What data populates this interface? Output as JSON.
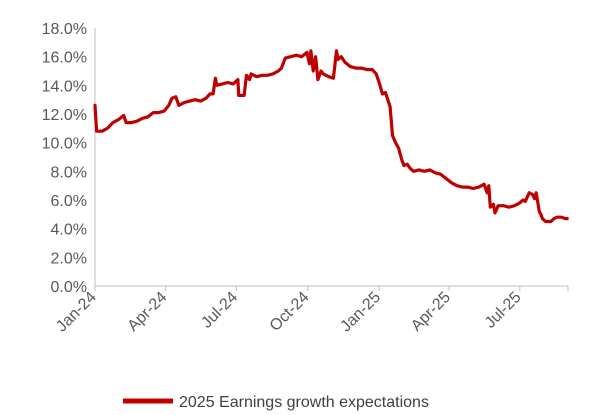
{
  "chart_data": {
    "type": "line",
    "title": "",
    "xlabel": "",
    "ylabel": "",
    "ylim": [
      0,
      18
    ],
    "y_tick_values": [
      0,
      2,
      4,
      6,
      8,
      10,
      12,
      14,
      16,
      18
    ],
    "y_tick_labels": [
      "0.0%",
      "2.0%",
      "4.0%",
      "6.0%",
      "8.0%",
      "10.0%",
      "12.0%",
      "14.0%",
      "16.0%",
      "18.0%"
    ],
    "x_tick_labels": [
      "Jan-24",
      "Apr-24",
      "Jul-24",
      "Oct-24",
      "Jan-25",
      "Apr-25",
      "Jul-25"
    ],
    "grid": false,
    "legend_position": "bottom",
    "series": [
      {
        "name": "2025 Earnings growth expectations",
        "color": "#c00000",
        "points": [
          [
            "2024-01-01",
            12.6
          ],
          [
            "2024-01-03",
            10.8
          ],
          [
            "2024-01-10",
            10.8
          ],
          [
            "2024-01-17",
            11.0
          ],
          [
            "2024-01-24",
            11.4
          ],
          [
            "2024-01-31",
            11.6
          ],
          [
            "2024-02-07",
            11.9
          ],
          [
            "2024-02-10",
            11.4
          ],
          [
            "2024-02-17",
            11.4
          ],
          [
            "2024-02-24",
            11.5
          ],
          [
            "2024-03-02",
            11.7
          ],
          [
            "2024-03-09",
            11.8
          ],
          [
            "2024-03-16",
            12.1
          ],
          [
            "2024-03-23",
            12.1
          ],
          [
            "2024-03-30",
            12.2
          ],
          [
            "2024-04-05",
            12.6
          ],
          [
            "2024-04-09",
            13.1
          ],
          [
            "2024-04-14",
            13.2
          ],
          [
            "2024-04-18",
            12.6
          ],
          [
            "2024-04-25",
            12.8
          ],
          [
            "2024-05-02",
            12.9
          ],
          [
            "2024-05-09",
            13.0
          ],
          [
            "2024-05-16",
            12.9
          ],
          [
            "2024-05-23",
            13.1
          ],
          [
            "2024-05-28",
            13.4
          ],
          [
            "2024-06-01",
            13.4
          ],
          [
            "2024-06-04",
            14.5
          ],
          [
            "2024-06-06",
            14.0
          ],
          [
            "2024-06-13",
            14.1
          ],
          [
            "2024-06-20",
            14.2
          ],
          [
            "2024-06-27",
            14.1
          ],
          [
            "2024-07-03",
            14.4
          ],
          [
            "2024-07-04",
            13.3
          ],
          [
            "2024-07-11",
            13.3
          ],
          [
            "2024-07-14",
            14.7
          ],
          [
            "2024-07-18",
            14.4
          ],
          [
            "2024-07-20",
            14.8
          ],
          [
            "2024-07-27",
            14.6
          ],
          [
            "2024-08-03",
            14.7
          ],
          [
            "2024-08-10",
            14.7
          ],
          [
            "2024-08-17",
            14.8
          ],
          [
            "2024-08-24",
            15.0
          ],
          [
            "2024-08-28",
            15.2
          ],
          [
            "2024-09-02",
            15.9
          ],
          [
            "2024-09-09",
            16.0
          ],
          [
            "2024-09-16",
            16.1
          ],
          [
            "2024-09-23",
            16.0
          ],
          [
            "2024-09-30",
            16.3
          ],
          [
            "2024-10-03",
            15.5
          ],
          [
            "2024-10-05",
            16.4
          ],
          [
            "2024-10-08",
            15.0
          ],
          [
            "2024-10-11",
            16.0
          ],
          [
            "2024-10-14",
            14.4
          ],
          [
            "2024-10-18",
            15.0
          ],
          [
            "2024-10-21",
            14.8
          ],
          [
            "2024-10-28",
            14.6
          ],
          [
            "2024-11-03",
            14.5
          ],
          [
            "2024-11-07",
            16.4
          ],
          [
            "2024-11-09",
            15.8
          ],
          [
            "2024-11-13",
            16.0
          ],
          [
            "2024-11-18",
            15.6
          ],
          [
            "2024-11-25",
            15.3
          ],
          [
            "2024-12-02",
            15.2
          ],
          [
            "2024-12-09",
            15.2
          ],
          [
            "2024-12-16",
            15.1
          ],
          [
            "2024-12-23",
            15.1
          ],
          [
            "2024-12-28",
            14.8
          ],
          [
            "2025-01-02",
            14.0
          ],
          [
            "2025-01-05",
            13.4
          ],
          [
            "2025-01-09",
            13.5
          ],
          [
            "2025-01-12",
            13.0
          ],
          [
            "2025-01-15",
            12.5
          ],
          [
            "2025-01-18",
            10.5
          ],
          [
            "2025-01-22",
            10.0
          ],
          [
            "2025-01-26",
            9.6
          ],
          [
            "2025-01-30",
            8.8
          ],
          [
            "2025-02-02",
            8.4
          ],
          [
            "2025-02-06",
            8.5
          ],
          [
            "2025-02-10",
            8.2
          ],
          [
            "2025-02-14",
            8.0
          ],
          [
            "2025-02-21",
            8.1
          ],
          [
            "2025-02-28",
            8.0
          ],
          [
            "2025-03-07",
            8.1
          ],
          [
            "2025-03-14",
            7.9
          ],
          [
            "2025-03-21",
            7.8
          ],
          [
            "2025-03-28",
            7.5
          ],
          [
            "2025-04-04",
            7.2
          ],
          [
            "2025-04-11",
            7.0
          ],
          [
            "2025-04-18",
            6.9
          ],
          [
            "2025-04-25",
            6.9
          ],
          [
            "2025-05-02",
            6.8
          ],
          [
            "2025-05-09",
            6.9
          ],
          [
            "2025-05-16",
            7.1
          ],
          [
            "2025-05-20",
            6.5
          ],
          [
            "2025-05-22",
            7.0
          ],
          [
            "2025-05-24",
            5.5
          ],
          [
            "2025-05-28",
            5.7
          ],
          [
            "2025-05-30",
            5.1
          ],
          [
            "2025-06-03",
            5.6
          ],
          [
            "2025-06-10",
            5.6
          ],
          [
            "2025-06-17",
            5.5
          ],
          [
            "2025-06-24",
            5.6
          ],
          [
            "2025-07-01",
            5.8
          ],
          [
            "2025-07-05",
            6.0
          ],
          [
            "2025-07-08",
            5.9
          ],
          [
            "2025-07-13",
            6.5
          ],
          [
            "2025-07-17",
            6.4
          ],
          [
            "2025-07-20",
            6.1
          ],
          [
            "2025-07-22",
            6.5
          ],
          [
            "2025-07-26",
            5.2
          ],
          [
            "2025-07-28",
            5.0
          ],
          [
            "2025-07-30",
            4.7
          ],
          [
            "2025-08-03",
            4.5
          ],
          [
            "2025-08-10",
            4.5
          ],
          [
            "2025-08-14",
            4.7
          ],
          [
            "2025-08-18",
            4.8
          ],
          [
            "2025-08-24",
            4.8
          ],
          [
            "2025-08-28",
            4.7
          ],
          [
            "2025-08-31",
            4.7
          ]
        ]
      }
    ]
  }
}
